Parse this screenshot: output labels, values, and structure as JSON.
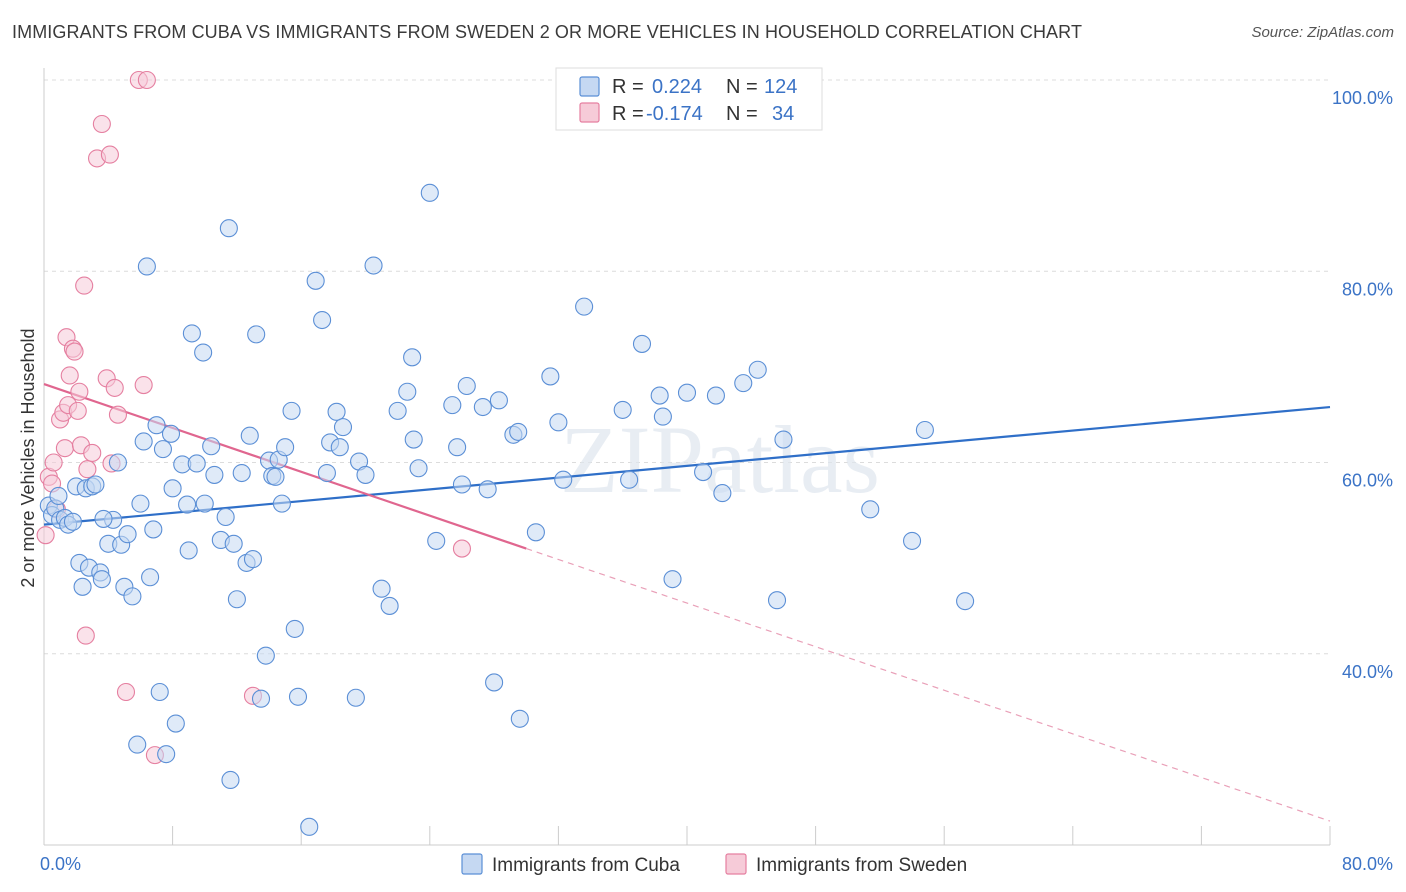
{
  "title": "IMMIGRANTS FROM CUBA VS IMMIGRANTS FROM SWEDEN 2 OR MORE VEHICLES IN HOUSEHOLD CORRELATION CHART",
  "source": "Source: ZipAtlas.com",
  "watermark": "ZIPatlas",
  "colors": {
    "cuba": "#5b8fd6",
    "cuba_fill": "#c5d8f2",
    "sweden": "#e57fa0",
    "sweden_fill": "#f6cbd8",
    "accent_text": "#3b73c6"
  },
  "legend": {
    "r_label": "R =",
    "n_label": "N =",
    "rows": [
      {
        "r": "0.224",
        "n": "124"
      },
      {
        "r": "-0.174",
        "n": "34"
      }
    ]
  },
  "chart_data": {
    "type": "scatter",
    "xlabel": "",
    "ylabel": "2 or more Vehicles in Household",
    "xlim": [
      0,
      80
    ],
    "ylim": [
      20,
      100
    ],
    "x_tick_labels": [
      "0.0%",
      "80.0%"
    ],
    "y_ticks": [
      40,
      60,
      80,
      100
    ],
    "y_tick_labels": [
      "40.0%",
      "60.0%",
      "80.0%",
      "100.0%"
    ],
    "grid": true,
    "legend_position": "top-center",
    "series": [
      {
        "name": "Immigrants from Cuba",
        "trend": {
          "x": [
            0,
            80
          ],
          "y": [
            53.5,
            65.8
          ]
        },
        "points": [
          [
            0.3,
            55.5
          ],
          [
            0.5,
            54.5
          ],
          [
            0.7,
            55.2
          ],
          [
            0.9,
            56.5
          ],
          [
            1.0,
            54.0
          ],
          [
            1.3,
            54.2
          ],
          [
            1.5,
            53.5
          ],
          [
            1.8,
            53.8
          ],
          [
            2.0,
            57.5
          ],
          [
            2.2,
            49.5
          ],
          [
            2.4,
            47.0
          ],
          [
            2.6,
            57.3
          ],
          [
            2.8,
            49.0
          ],
          [
            3.0,
            57.5
          ],
          [
            3.2,
            57.7
          ],
          [
            3.5,
            48.5
          ],
          [
            3.6,
            47.8
          ],
          [
            4.0,
            51.5
          ],
          [
            4.3,
            54.0
          ],
          [
            4.6,
            60.0
          ],
          [
            4.8,
            51.4
          ],
          [
            5.0,
            47.0
          ],
          [
            5.2,
            52.5
          ],
          [
            5.5,
            46.0
          ],
          [
            5.8,
            30.5
          ],
          [
            6.0,
            55.7
          ],
          [
            6.2,
            62.2
          ],
          [
            6.4,
            80.5
          ],
          [
            6.6,
            48.0
          ],
          [
            6.8,
            53.0
          ],
          [
            7.0,
            63.9
          ],
          [
            7.2,
            36.0
          ],
          [
            7.4,
            61.4
          ],
          [
            7.6,
            29.5
          ],
          [
            7.9,
            63.0
          ],
          [
            8.0,
            57.3
          ],
          [
            8.2,
            32.7
          ],
          [
            8.6,
            59.8
          ],
          [
            8.9,
            55.6
          ],
          [
            9.0,
            50.8
          ],
          [
            9.2,
            73.5
          ],
          [
            9.5,
            59.9
          ],
          [
            9.9,
            71.5
          ],
          [
            10.0,
            55.7
          ],
          [
            10.4,
            61.7
          ],
          [
            10.6,
            58.7
          ],
          [
            11.0,
            51.9
          ],
          [
            11.3,
            54.3
          ],
          [
            11.5,
            84.5
          ],
          [
            11.6,
            26.8
          ],
          [
            11.8,
            51.5
          ],
          [
            12.0,
            45.7
          ],
          [
            12.3,
            58.9
          ],
          [
            12.6,
            49.5
          ],
          [
            12.8,
            62.8
          ],
          [
            13.0,
            49.9
          ],
          [
            13.2,
            73.4
          ],
          [
            13.5,
            35.3
          ],
          [
            13.8,
            39.8
          ],
          [
            14.0,
            60.2
          ],
          [
            14.2,
            58.6
          ],
          [
            14.4,
            58.5
          ],
          [
            14.6,
            60.3
          ],
          [
            14.8,
            55.7
          ],
          [
            15.0,
            61.6
          ],
          [
            15.4,
            65.4
          ],
          [
            15.6,
            42.6
          ],
          [
            15.8,
            35.5
          ],
          [
            16.5,
            21.9
          ],
          [
            16.9,
            79.0
          ],
          [
            17.3,
            74.9
          ],
          [
            17.6,
            58.9
          ],
          [
            17.8,
            62.1
          ],
          [
            18.2,
            65.3
          ],
          [
            18.4,
            61.6
          ],
          [
            18.6,
            63.7
          ],
          [
            19.4,
            35.4
          ],
          [
            19.6,
            60.1
          ],
          [
            20.0,
            58.7
          ],
          [
            20.5,
            80.6
          ],
          [
            21.0,
            46.8
          ],
          [
            21.5,
            45.0
          ],
          [
            22.0,
            65.4
          ],
          [
            22.6,
            67.4
          ],
          [
            22.9,
            71.0
          ],
          [
            23.0,
            62.4
          ],
          [
            23.3,
            59.4
          ],
          [
            24.0,
            88.2
          ],
          [
            24.4,
            51.8
          ],
          [
            25.4,
            66.0
          ],
          [
            25.7,
            61.6
          ],
          [
            26.0,
            57.7
          ],
          [
            26.3,
            68.0
          ],
          [
            27.3,
            65.8
          ],
          [
            27.6,
            57.2
          ],
          [
            28.0,
            37.0
          ],
          [
            28.3,
            66.5
          ],
          [
            29.2,
            62.9
          ],
          [
            29.5,
            63.2
          ],
          [
            29.6,
            33.2
          ],
          [
            30.6,
            52.7
          ],
          [
            31.5,
            69.0
          ],
          [
            32.0,
            64.2
          ],
          [
            32.3,
            58.2
          ],
          [
            33.6,
            76.3
          ],
          [
            36.0,
            65.5
          ],
          [
            36.4,
            58.2
          ],
          [
            37.2,
            72.4
          ],
          [
            38.3,
            67.0
          ],
          [
            38.5,
            64.8
          ],
          [
            39.1,
            47.8
          ],
          [
            40.0,
            67.3
          ],
          [
            41.8,
            67.0
          ],
          [
            42.2,
            56.8
          ],
          [
            43.5,
            68.3
          ],
          [
            44.4,
            69.7
          ],
          [
            45.6,
            45.6
          ],
          [
            46.0,
            62.4
          ],
          [
            51.4,
            55.1
          ],
          [
            54.0,
            51.8
          ],
          [
            54.8,
            63.4
          ],
          [
            57.3,
            45.5
          ],
          [
            41.0,
            59.0
          ],
          [
            3.7,
            54.1
          ]
        ]
      },
      {
        "name": "Immigrants from Sweden",
        "trend": {
          "x": [
            0,
            30
          ],
          "y": [
            68.2,
            51.0
          ]
        },
        "trend_dashed": {
          "x": [
            30,
            80
          ],
          "y": [
            51.0,
            22.5
          ]
        },
        "points": [
          [
            0.1,
            52.4
          ],
          [
            0.3,
            58.5
          ],
          [
            0.5,
            57.8
          ],
          [
            0.6,
            60.0
          ],
          [
            0.8,
            55.1
          ],
          [
            1.0,
            64.5
          ],
          [
            1.2,
            65.2
          ],
          [
            1.3,
            61.5
          ],
          [
            1.4,
            73.1
          ],
          [
            1.5,
            66.0
          ],
          [
            1.6,
            69.1
          ],
          [
            1.8,
            71.9
          ],
          [
            1.9,
            71.6
          ],
          [
            2.1,
            65.4
          ],
          [
            2.2,
            67.4
          ],
          [
            2.3,
            61.8
          ],
          [
            2.5,
            78.5
          ],
          [
            2.6,
            41.9
          ],
          [
            2.7,
            59.3
          ],
          [
            3.0,
            61.0
          ],
          [
            3.3,
            91.8
          ],
          [
            3.6,
            95.4
          ],
          [
            3.9,
            68.8
          ],
          [
            4.1,
            92.2
          ],
          [
            4.2,
            59.9
          ],
          [
            4.4,
            67.8
          ],
          [
            4.6,
            65.0
          ],
          [
            5.1,
            36.0
          ],
          [
            5.9,
            100.0
          ],
          [
            6.2,
            68.1
          ],
          [
            6.4,
            100.0
          ],
          [
            6.9,
            29.4
          ],
          [
            13.0,
            35.6
          ],
          [
            26.0,
            51.0
          ]
        ]
      }
    ]
  },
  "bottom_legend": [
    "Immigrants from Cuba",
    "Immigrants from Sweden"
  ]
}
